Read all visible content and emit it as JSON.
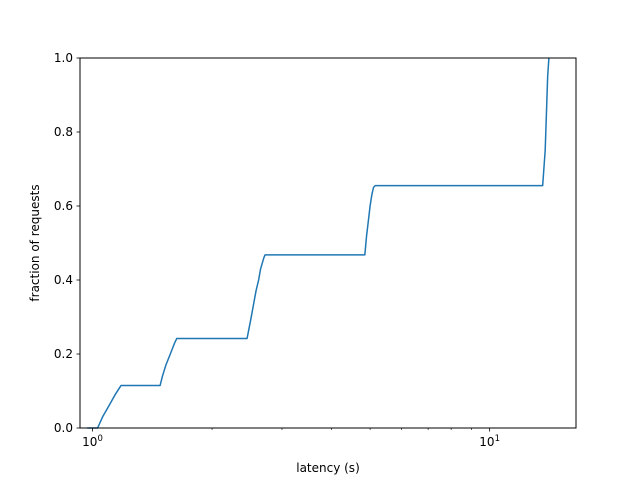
{
  "chart_data": {
    "type": "line",
    "xlabel": "latency (s)",
    "ylabel": "fraction of requests",
    "xscale": "log",
    "xlim": [
      0.93,
      16.5
    ],
    "ylim": [
      0,
      1
    ],
    "grid": false,
    "x_ticks_major": [
      {
        "value": 1,
        "label": "10",
        "exp": "0"
      },
      {
        "value": 10,
        "label": "10",
        "exp": "1"
      }
    ],
    "x_ticks_minor": [
      2,
      3,
      4,
      5,
      6,
      7,
      8,
      9
    ],
    "y_ticks": [
      {
        "value": 0.0,
        "label": "0.0"
      },
      {
        "value": 0.2,
        "label": "0.2"
      },
      {
        "value": 0.4,
        "label": "0.4"
      },
      {
        "value": 0.6,
        "label": "0.6"
      },
      {
        "value": 0.8,
        "label": "0.8"
      },
      {
        "value": 1.0,
        "label": "1.0"
      }
    ],
    "series": [
      {
        "color": "#1f77b4",
        "x": [
          0.97,
          1.03,
          1.06,
          1.1,
          1.14,
          1.18,
          1.2,
          1.35,
          1.48,
          1.5,
          1.53,
          1.57,
          1.61,
          1.63,
          2.45,
          2.5,
          2.54,
          2.58,
          2.62,
          2.65,
          2.7,
          2.72,
          4.85,
          4.9,
          4.95,
          5.0,
          5.05,
          5.1,
          5.15,
          13.6,
          13.8,
          13.9,
          14.0,
          14.1
        ],
        "y": [
          0.0,
          0.0,
          0.03,
          0.06,
          0.09,
          0.115,
          0.115,
          0.115,
          0.115,
          0.14,
          0.17,
          0.2,
          0.23,
          0.242,
          0.242,
          0.29,
          0.33,
          0.37,
          0.4,
          0.43,
          0.46,
          0.468,
          0.468,
          0.52,
          0.56,
          0.6,
          0.63,
          0.65,
          0.655,
          0.655,
          0.75,
          0.85,
          0.95,
          1.0
        ]
      }
    ]
  }
}
